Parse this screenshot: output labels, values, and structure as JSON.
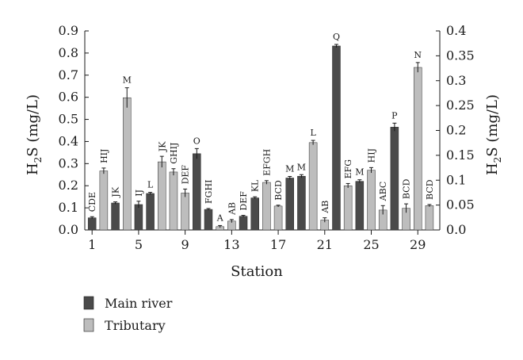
{
  "colors": {
    "main_river": "#4a4a4a",
    "tributary": "#bdbdbd",
    "axis": "#1a1a1a",
    "error_bar": "#1a1a1a"
  },
  "chart_data": {
    "type": "bar",
    "x_label": "Station",
    "y_left_label": "H2S (mg/L)",
    "y_right_label": "H2S (mg/L)",
    "y_left_ticks": [
      "0.0",
      "0.1",
      "0.2",
      "0.3",
      "0.4",
      "0.5",
      "0.6",
      "0.7",
      "0.8",
      "0.9"
    ],
    "y_right_ticks": [
      "0.0",
      "0.05",
      "0.1",
      "0.15",
      "0.2",
      "0.25",
      "0.3",
      "0.35",
      "0.4"
    ],
    "x_tick_labels": [
      "1",
      "5",
      "9",
      "13",
      "17",
      "21",
      "25",
      "29"
    ],
    "x_tick_stations": [
      1,
      5,
      9,
      13,
      17,
      21,
      25,
      29
    ],
    "ylim_left": [
      0,
      0.9
    ],
    "ylim_right": [
      0,
      0.4
    ],
    "grid": false,
    "legend_position": "bottom-left",
    "series": [
      {
        "name": "Main river",
        "color": "#4a4a4a"
      },
      {
        "name": "Tributary",
        "color": "#bdbdbd"
      }
    ],
    "bars": [
      {
        "station": 1,
        "series": "Main river",
        "value": 0.055,
        "error": 0.005,
        "label": "CDE"
      },
      {
        "station": 2,
        "series": "Tributary",
        "value": 0.267,
        "error": 0.013,
        "label": "HIJ"
      },
      {
        "station": 3,
        "series": "Main river",
        "value": 0.122,
        "error": 0.005,
        "label": "JK"
      },
      {
        "station": 4,
        "series": "Tributary",
        "value": 0.598,
        "error": 0.045,
        "label": "M"
      },
      {
        "station": 5,
        "series": "Main river",
        "value": 0.115,
        "error": 0.015,
        "label": "IJ"
      },
      {
        "station": 6,
        "series": "Main river",
        "value": 0.165,
        "error": 0.005,
        "label": "L"
      },
      {
        "station": 7,
        "series": "Tributary",
        "value": 0.308,
        "error": 0.025,
        "label": "JK"
      },
      {
        "station": 8,
        "series": "Tributary",
        "value": 0.262,
        "error": 0.015,
        "label": "GHIJ"
      },
      {
        "station": 9,
        "series": "Tributary",
        "value": 0.167,
        "error": 0.018,
        "label": "DEF"
      },
      {
        "station": 10,
        "series": "Main river",
        "value": 0.345,
        "error": 0.023,
        "label": "O"
      },
      {
        "station": 11,
        "series": "Main river",
        "value": 0.093,
        "error": 0.004,
        "label": "FGHI"
      },
      {
        "station": 12,
        "series": "Tributary",
        "value": 0.015,
        "error": 0.005,
        "label": "A"
      },
      {
        "station": 13,
        "series": "Tributary",
        "value": 0.04,
        "error": 0.007,
        "label": "AB"
      },
      {
        "station": 14,
        "series": "Main river",
        "value": 0.062,
        "error": 0.004,
        "label": "DEF"
      },
      {
        "station": 15,
        "series": "Main river",
        "value": 0.145,
        "error": 0.005,
        "label": "KL"
      },
      {
        "station": 16,
        "series": "Tributary",
        "value": 0.215,
        "error": 0.008,
        "label": "EFGH"
      },
      {
        "station": 17,
        "series": "Tributary",
        "value": 0.108,
        "error": 0.004,
        "label": "BCD"
      },
      {
        "station": 18,
        "series": "Main river",
        "value": 0.235,
        "error": 0.007,
        "label": "M"
      },
      {
        "station": 19,
        "series": "Main river",
        "value": 0.243,
        "error": 0.007,
        "label": "M"
      },
      {
        "station": 20,
        "series": "Tributary",
        "value": 0.395,
        "error": 0.01,
        "label": "L"
      },
      {
        "station": 21,
        "series": "Tributary",
        "value": 0.045,
        "error": 0.01,
        "label": "AB"
      },
      {
        "station": 22,
        "series": "Main river",
        "value": 0.832,
        "error": 0.007,
        "label": "Q"
      },
      {
        "station": 23,
        "series": "Tributary",
        "value": 0.2,
        "error": 0.01,
        "label": "EFG"
      },
      {
        "station": 24,
        "series": "Main river",
        "value": 0.22,
        "error": 0.007,
        "label": "M"
      },
      {
        "station": 25,
        "series": "Tributary",
        "value": 0.27,
        "error": 0.012,
        "label": "HIJ"
      },
      {
        "station": 26,
        "series": "Tributary",
        "value": 0.09,
        "error": 0.02,
        "label": "ABC"
      },
      {
        "station": 27,
        "series": "Main river",
        "value": 0.465,
        "error": 0.018,
        "label": "P"
      },
      {
        "station": 28,
        "series": "Tributary",
        "value": 0.098,
        "error": 0.02,
        "label": "BCD"
      },
      {
        "station": 29,
        "series": "Tributary",
        "value": 0.735,
        "error": 0.022,
        "label": "N"
      },
      {
        "station": 30,
        "series": "Tributary",
        "value": 0.11,
        "error": 0.005,
        "label": "BCD"
      }
    ]
  }
}
